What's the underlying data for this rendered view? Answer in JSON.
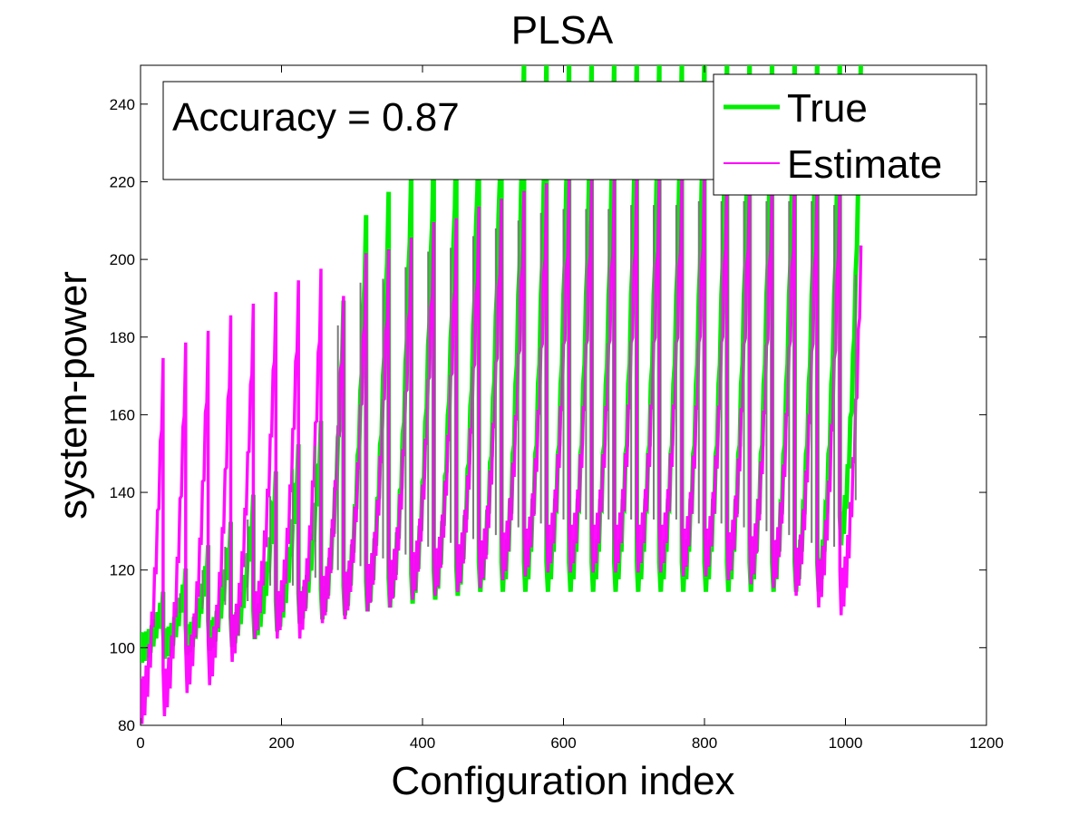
{
  "chart_data": {
    "type": "line",
    "title": "PLSA",
    "xlabel": "Configuration index",
    "ylabel": "system-power",
    "xlim": [
      0,
      1200
    ],
    "ylim": [
      80,
      250
    ],
    "xticks": [
      "0",
      "200",
      "400",
      "600",
      "800",
      "1000",
      "1200"
    ],
    "yticks": [
      "80",
      "100",
      "120",
      "140",
      "160",
      "180",
      "200",
      "220",
      "240"
    ],
    "grid": false,
    "legend_position": "top-right",
    "annotation": "Accuracy = 0.87",
    "colors": {
      "true": "#00ee00",
      "estimate": "#ff00ff",
      "overlap": "#7a7a7a"
    },
    "segment_length": 32,
    "cycles": [
      {
        "start": 0,
        "true_min": 100,
        "true_max": 112,
        "est_min": 86,
        "est_max": 171
      },
      {
        "start": 32,
        "true_min": 101,
        "true_max": 118,
        "est_min": 88,
        "est_max": 175
      },
      {
        "start": 64,
        "true_min": 102,
        "true_max": 124,
        "est_min": 94,
        "est_max": 178
      },
      {
        "start": 96,
        "true_min": 103,
        "true_max": 130,
        "est_min": 96,
        "est_max": 182
      },
      {
        "start": 128,
        "true_min": 104,
        "true_max": 137,
        "est_min": 102,
        "est_max": 185
      },
      {
        "start": 160,
        "true_min": 106,
        "true_max": 143,
        "est_min": 108,
        "est_max": 188
      },
      {
        "start": 192,
        "true_min": 108,
        "true_max": 150,
        "est_min": 108,
        "est_max": 191
      },
      {
        "start": 224,
        "true_min": 110,
        "true_max": 156,
        "est_min": 108,
        "est_max": 194
      },
      {
        "start": 256,
        "true_min": 111,
        "true_max": 187,
        "est_min": 112,
        "est_max": 187
      },
      {
        "start": 288,
        "true_min": 112,
        "true_max": 209,
        "est_min": 113,
        "est_max": 198
      },
      {
        "start": 320,
        "true_min": 113,
        "true_max": 215,
        "est_min": 115,
        "est_max": 199
      },
      {
        "start": 352,
        "true_min": 114,
        "true_max": 221,
        "est_min": 116,
        "est_max": 202
      },
      {
        "start": 384,
        "true_min": 115,
        "true_max": 228,
        "est_min": 118,
        "est_max": 206
      },
      {
        "start": 416,
        "true_min": 116,
        "true_max": 231,
        "est_min": 119,
        "est_max": 207
      },
      {
        "start": 448,
        "true_min": 117,
        "true_max": 236,
        "est_min": 120,
        "est_max": 210
      },
      {
        "start": 480,
        "true_min": 118,
        "true_max": 240,
        "est_min": 121,
        "est_max": 212
      },
      {
        "start": 512,
        "true_min": 118,
        "true_max": 250,
        "est_min": 123,
        "est_max": 214
      },
      {
        "start": 544,
        "true_min": 118,
        "true_max": 250,
        "est_min": 124,
        "est_max": 216
      },
      {
        "start": 576,
        "true_min": 118,
        "true_max": 250,
        "est_min": 125,
        "est_max": 217
      },
      {
        "start": 608,
        "true_min": 118,
        "true_max": 250,
        "est_min": 125,
        "est_max": 217
      },
      {
        "start": 640,
        "true_min": 118,
        "true_max": 250,
        "est_min": 125,
        "est_max": 217
      },
      {
        "start": 672,
        "true_min": 118,
        "true_max": 250,
        "est_min": 125,
        "est_max": 218
      },
      {
        "start": 704,
        "true_min": 118,
        "true_max": 250,
        "est_min": 125,
        "est_max": 218
      },
      {
        "start": 736,
        "true_min": 118,
        "true_max": 250,
        "est_min": 125,
        "est_max": 218
      },
      {
        "start": 768,
        "true_min": 118,
        "true_max": 250,
        "est_min": 124,
        "est_max": 219
      },
      {
        "start": 800,
        "true_min": 118,
        "true_max": 250,
        "est_min": 124,
        "est_max": 219
      },
      {
        "start": 832,
        "true_min": 118,
        "true_max": 250,
        "est_min": 123,
        "est_max": 219
      },
      {
        "start": 864,
        "true_min": 118,
        "true_max": 250,
        "est_min": 122,
        "est_max": 219
      },
      {
        "start": 896,
        "true_min": 118,
        "true_max": 250,
        "est_min": 121,
        "est_max": 219
      },
      {
        "start": 928,
        "true_min": 118,
        "true_max": 250,
        "est_min": 119,
        "est_max": 219
      },
      {
        "start": 960,
        "true_min": 118,
        "true_max": 250,
        "est_min": 116,
        "est_max": 218
      },
      {
        "start": 992,
        "true_min": 130,
        "true_max": 250,
        "est_min": 114,
        "est_max": 200
      }
    ],
    "series": [
      {
        "name": "True",
        "color": "#00ee00"
      },
      {
        "name": "Estimate",
        "color": "#ff00ff"
      }
    ]
  }
}
